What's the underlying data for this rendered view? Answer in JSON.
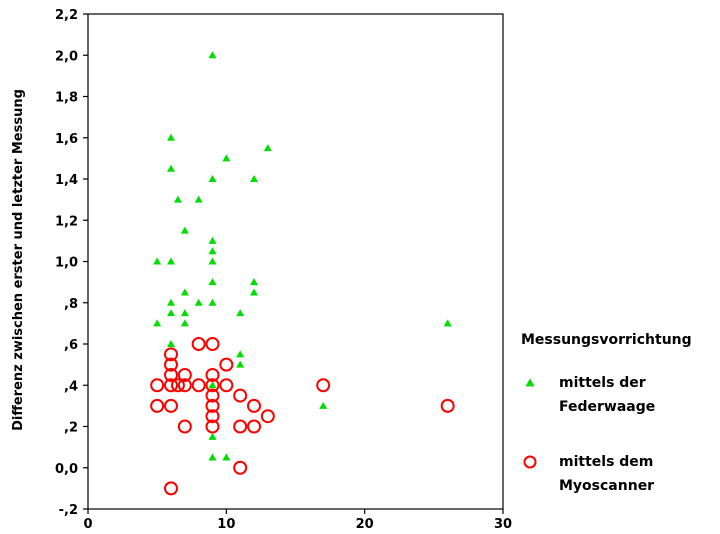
{
  "chart_data": {
    "type": "scatter",
    "title": "",
    "xlabel": "",
    "ylabel": "Differenz zwischen erster und letzter Messung",
    "xlim": [
      0,
      30
    ],
    "ylim": [
      -0.2,
      2.2
    ],
    "x_ticks": [
      0,
      10,
      20,
      30
    ],
    "x_tick_labels": [
      "0",
      "10",
      "20",
      "30"
    ],
    "y_ticks": [
      -0.2,
      0.0,
      0.2,
      0.4,
      0.6,
      0.8,
      1.0,
      1.2,
      1.4,
      1.6,
      1.8,
      2.0,
      2.2
    ],
    "y_tick_labels": [
      "-,2",
      "0,0",
      ",2",
      ",4",
      ",6",
      ",8",
      "1,0",
      "1,2",
      "1,4",
      "1,6",
      "1,8",
      "2,0",
      "2,2"
    ],
    "grid": false,
    "legend_position": "right",
    "legend_title": "Messungsvorrichtung",
    "series": [
      {
        "name": "mittels der Federwaage",
        "marker": "triangle",
        "color": "#00dd00",
        "points": [
          [
            9,
            2.0
          ],
          [
            6,
            1.6
          ],
          [
            13,
            1.55
          ],
          [
            10,
            1.5
          ],
          [
            6,
            1.45
          ],
          [
            9,
            1.4
          ],
          [
            12,
            1.4
          ],
          [
            6.5,
            1.3
          ],
          [
            8,
            1.3
          ],
          [
            7,
            1.15
          ],
          [
            9,
            1.1
          ],
          [
            9,
            1.05
          ],
          [
            5,
            1.0
          ],
          [
            6,
            1.0
          ],
          [
            9,
            1.0
          ],
          [
            9,
            0.9
          ],
          [
            12,
            0.9
          ],
          [
            7,
            0.85
          ],
          [
            12,
            0.85
          ],
          [
            6,
            0.8
          ],
          [
            8,
            0.8
          ],
          [
            9,
            0.8
          ],
          [
            6,
            0.75
          ],
          [
            7,
            0.75
          ],
          [
            11,
            0.75
          ],
          [
            5,
            0.7
          ],
          [
            7,
            0.7
          ],
          [
            26,
            0.7
          ],
          [
            6,
            0.6
          ],
          [
            11,
            0.55
          ],
          [
            11,
            0.5
          ],
          [
            9,
            0.4
          ],
          [
            17,
            0.3
          ],
          [
            9,
            0.15
          ],
          [
            9,
            0.05
          ],
          [
            10,
            0.05
          ]
        ]
      },
      {
        "name": "mittels dem Myoscanner",
        "marker": "circle",
        "color": "#ff0000",
        "points": [
          [
            8,
            0.6
          ],
          [
            9,
            0.6
          ],
          [
            10,
            0.5
          ],
          [
            6,
            0.55
          ],
          [
            6,
            0.5
          ],
          [
            6,
            0.45
          ],
          [
            7,
            0.45
          ],
          [
            9,
            0.45
          ],
          [
            5,
            0.4
          ],
          [
            6,
            0.4
          ],
          [
            6.5,
            0.4
          ],
          [
            7,
            0.4
          ],
          [
            8,
            0.4
          ],
          [
            9,
            0.4
          ],
          [
            10,
            0.4
          ],
          [
            17,
            0.4
          ],
          [
            9,
            0.35
          ],
          [
            11,
            0.35
          ],
          [
            5,
            0.3
          ],
          [
            6,
            0.3
          ],
          [
            9,
            0.3
          ],
          [
            12,
            0.3
          ],
          [
            26,
            0.3
          ],
          [
            9,
            0.25
          ],
          [
            13,
            0.25
          ],
          [
            7,
            0.2
          ],
          [
            9,
            0.2
          ],
          [
            11,
            0.2
          ],
          [
            12,
            0.2
          ],
          [
            11,
            0.0
          ],
          [
            6,
            -0.1
          ]
        ]
      }
    ]
  }
}
